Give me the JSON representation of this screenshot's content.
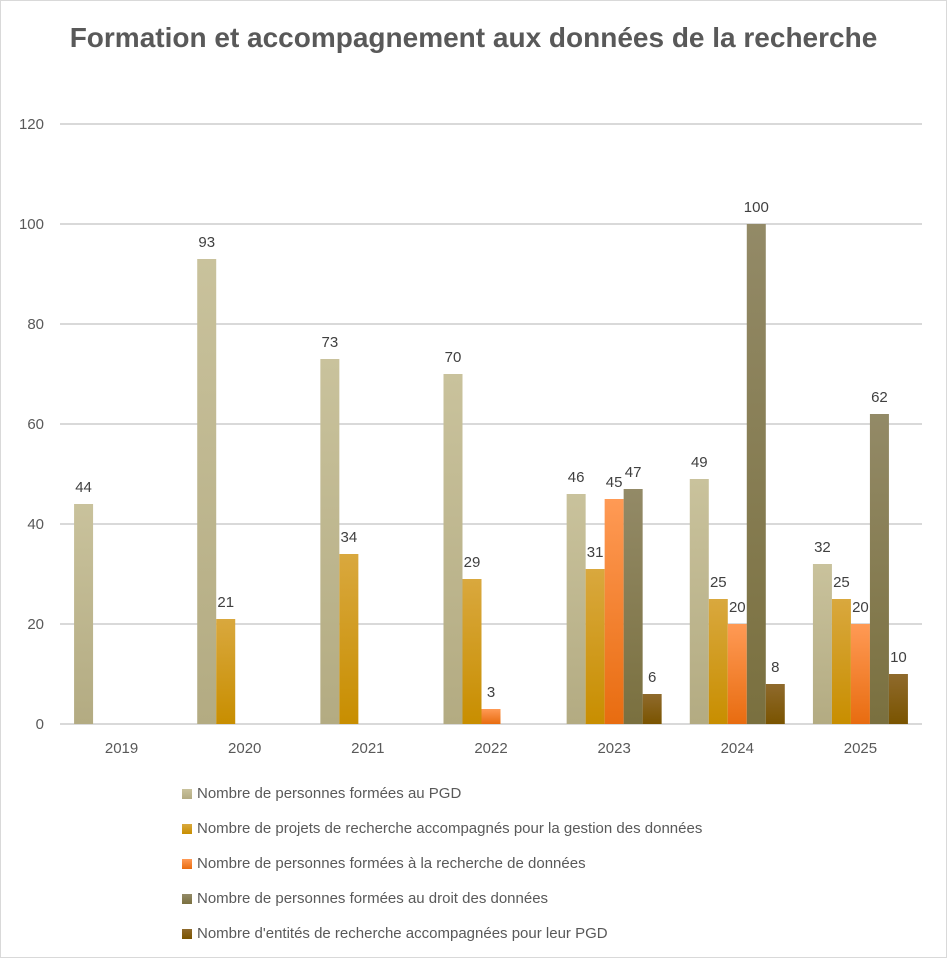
{
  "chart_data": {
    "type": "bar",
    "title": "Formation et accompagnement aux données de la recherche",
    "xlabel": "",
    "ylabel": "",
    "ylim": [
      0,
      120
    ],
    "yticks": [
      0,
      20,
      40,
      60,
      80,
      100,
      120
    ],
    "grid": true,
    "legend_position": "bottom",
    "categories": [
      "2019",
      "2020",
      "2021",
      "2022",
      "2023",
      "2024",
      "2025"
    ],
    "series": [
      {
        "name": "Nombre de personnes formées au PGD",
        "color": "#c9c29c",
        "color_dark": "#b3ab82",
        "values": [
          44,
          93,
          73,
          70,
          46,
          49,
          32
        ]
      },
      {
        "name": "Nombre de projets de recherche accompagnés pour la gestion des données",
        "color": "#d9a83e",
        "color_dark": "#c88e00",
        "values": [
          null,
          21,
          34,
          29,
          31,
          25,
          25
        ]
      },
      {
        "name": "Nombre de personnes formées à la recherche de données",
        "color": "#ff9a55",
        "color_dark": "#e86c10",
        "values": [
          null,
          null,
          null,
          3,
          45,
          20,
          20
        ]
      },
      {
        "name": "Nombre de personnes formées au droit des données",
        "color": "#938a67",
        "color_dark": "#7a703f",
        "values": [
          null,
          null,
          null,
          null,
          47,
          100,
          62
        ]
      },
      {
        "name": "Nombre d'entités de recherche accompagnées pour leur PGD",
        "color": "#8f6a2c",
        "color_dark": "#7a5400",
        "values": [
          null,
          null,
          null,
          null,
          6,
          8,
          10
        ]
      }
    ]
  }
}
